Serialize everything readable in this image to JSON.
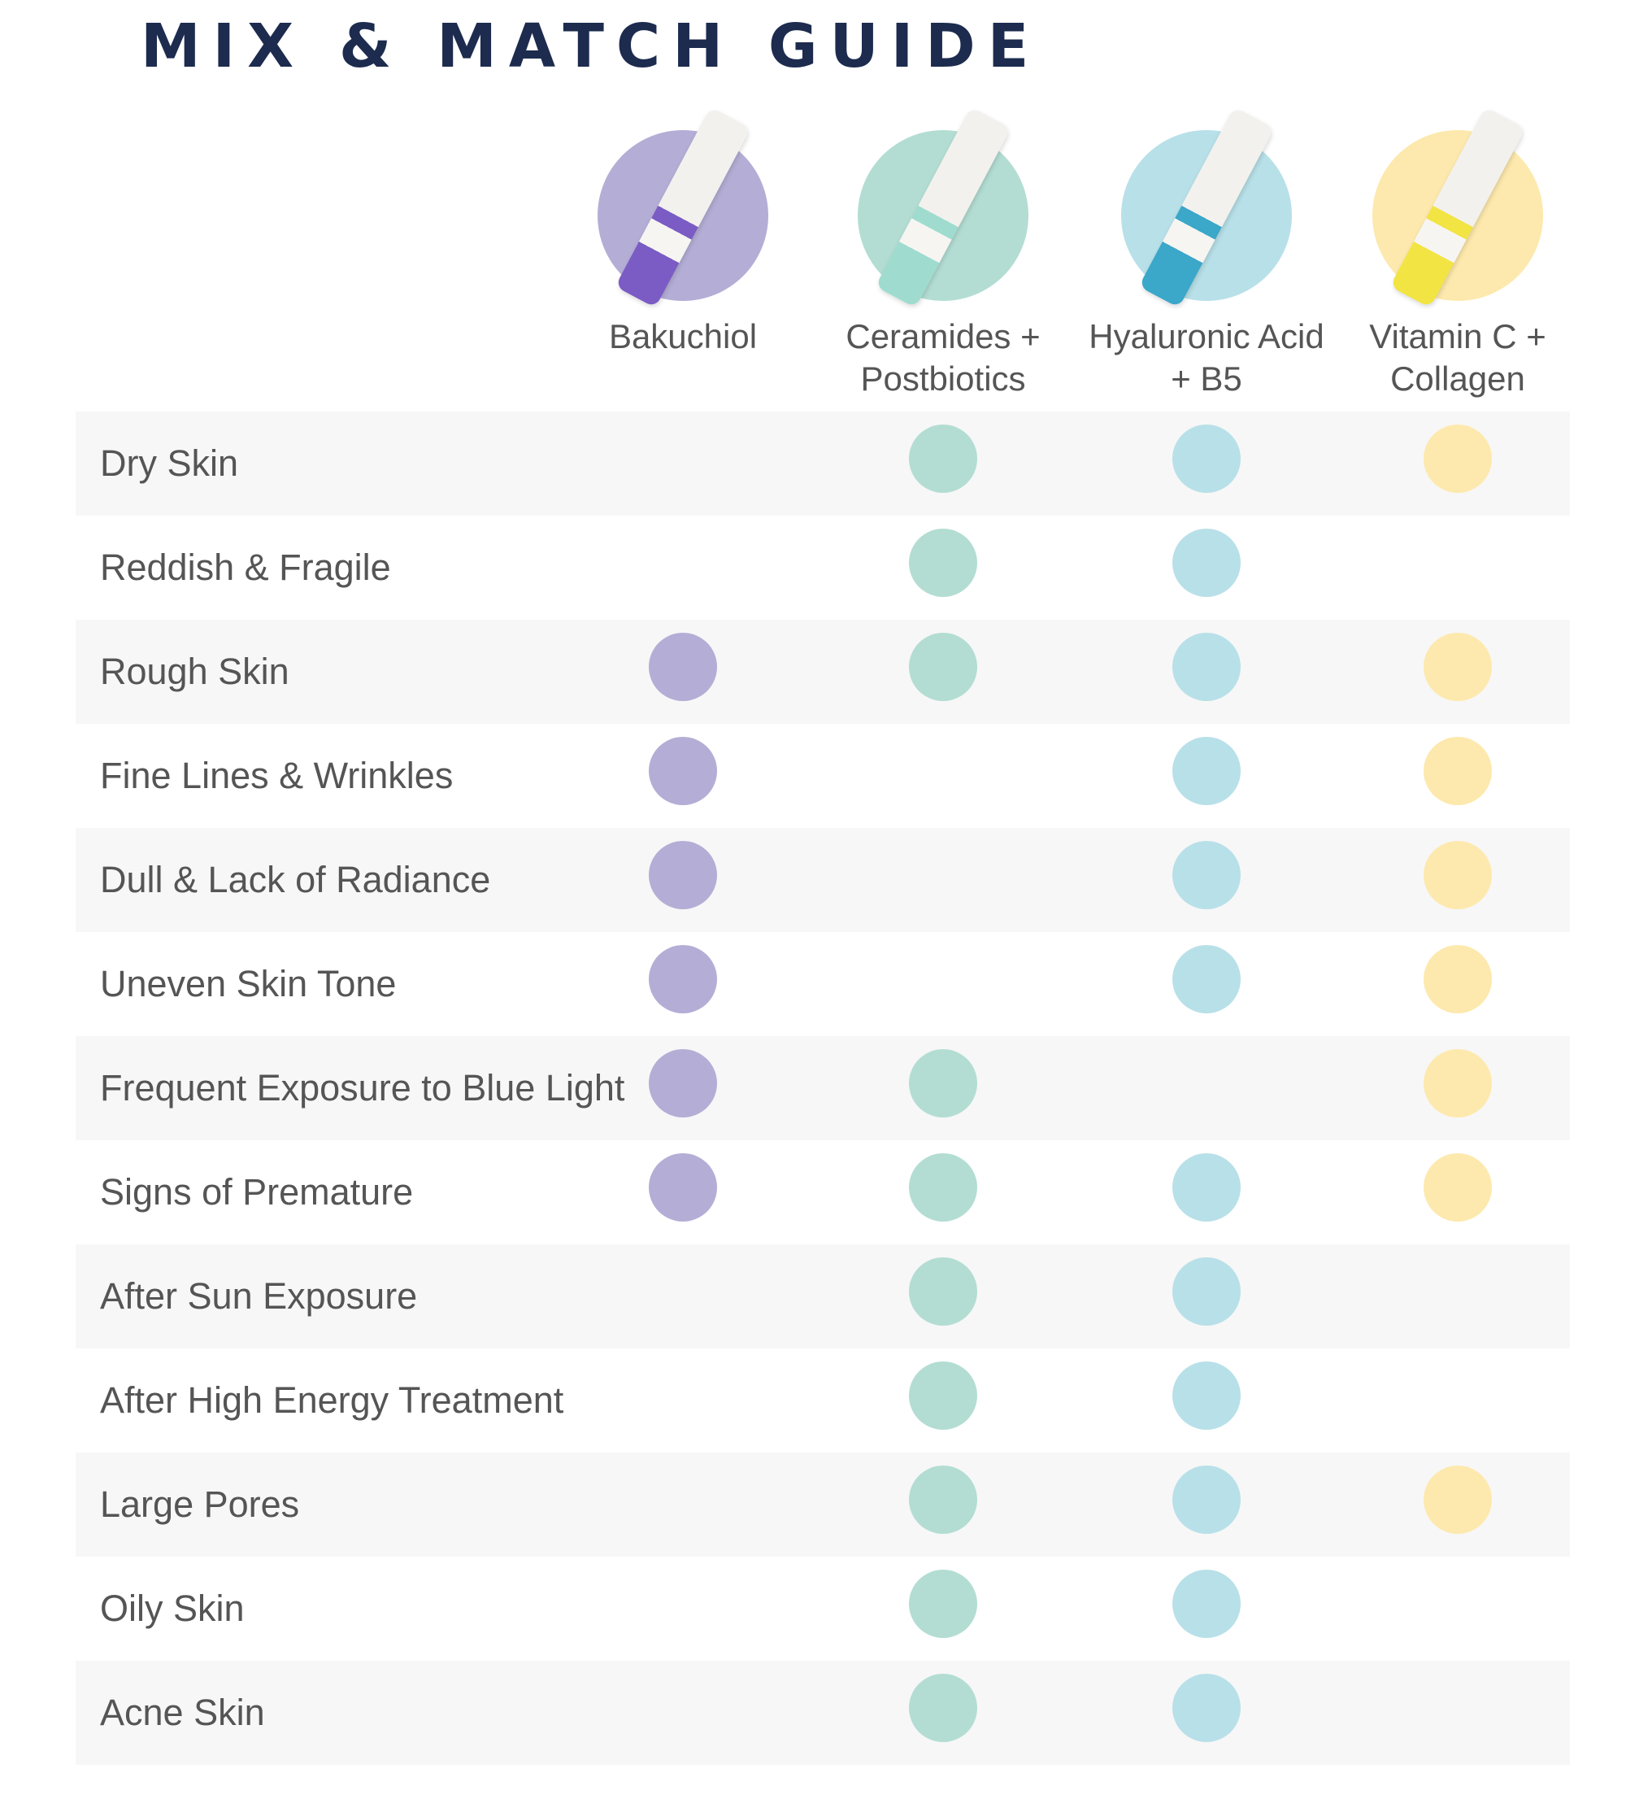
{
  "title": "MIX & MATCH GUIDE",
  "products": [
    {
      "name": "Bakuchiol",
      "color": "#b4aed6",
      "tube": "#7b5cc4"
    },
    {
      "name": "Ceramides + Postbiotics",
      "color": "#b3ddd3",
      "tube": "#9fdccf"
    },
    {
      "name": "Hyaluronic Acid + B5",
      "color": "#b8e0e8",
      "tube": "#3ba7c9"
    },
    {
      "name": "Vitamin C + Collagen",
      "color": "#fde9ad",
      "tube": "#f2e443"
    }
  ],
  "rows": [
    {
      "label": "Dry Skin",
      "matches": [
        false,
        true,
        true,
        true
      ]
    },
    {
      "label": "Reddish & Fragile",
      "matches": [
        false,
        true,
        true,
        false
      ]
    },
    {
      "label": "Rough Skin",
      "matches": [
        true,
        true,
        true,
        true
      ]
    },
    {
      "label": "Fine Lines & Wrinkles",
      "matches": [
        true,
        false,
        true,
        true
      ]
    },
    {
      "label": "Dull & Lack of Radiance",
      "matches": [
        true,
        false,
        true,
        true
      ]
    },
    {
      "label": "Uneven Skin Tone",
      "matches": [
        true,
        false,
        true,
        true
      ]
    },
    {
      "label": "Frequent Exposure to Blue Light",
      "matches": [
        true,
        true,
        false,
        true
      ]
    },
    {
      "label": "Signs of Premature",
      "matches": [
        true,
        true,
        true,
        true
      ]
    },
    {
      "label": "After Sun Exposure",
      "matches": [
        false,
        true,
        true,
        false
      ]
    },
    {
      "label": "After High Energy Treatment",
      "matches": [
        false,
        true,
        true,
        false
      ]
    },
    {
      "label": "Large Pores",
      "matches": [
        false,
        true,
        true,
        true
      ]
    },
    {
      "label": "Oily Skin",
      "matches": [
        false,
        true,
        true,
        false
      ]
    },
    {
      "label": "Acne Skin",
      "matches": [
        false,
        true,
        true,
        false
      ]
    }
  ]
}
